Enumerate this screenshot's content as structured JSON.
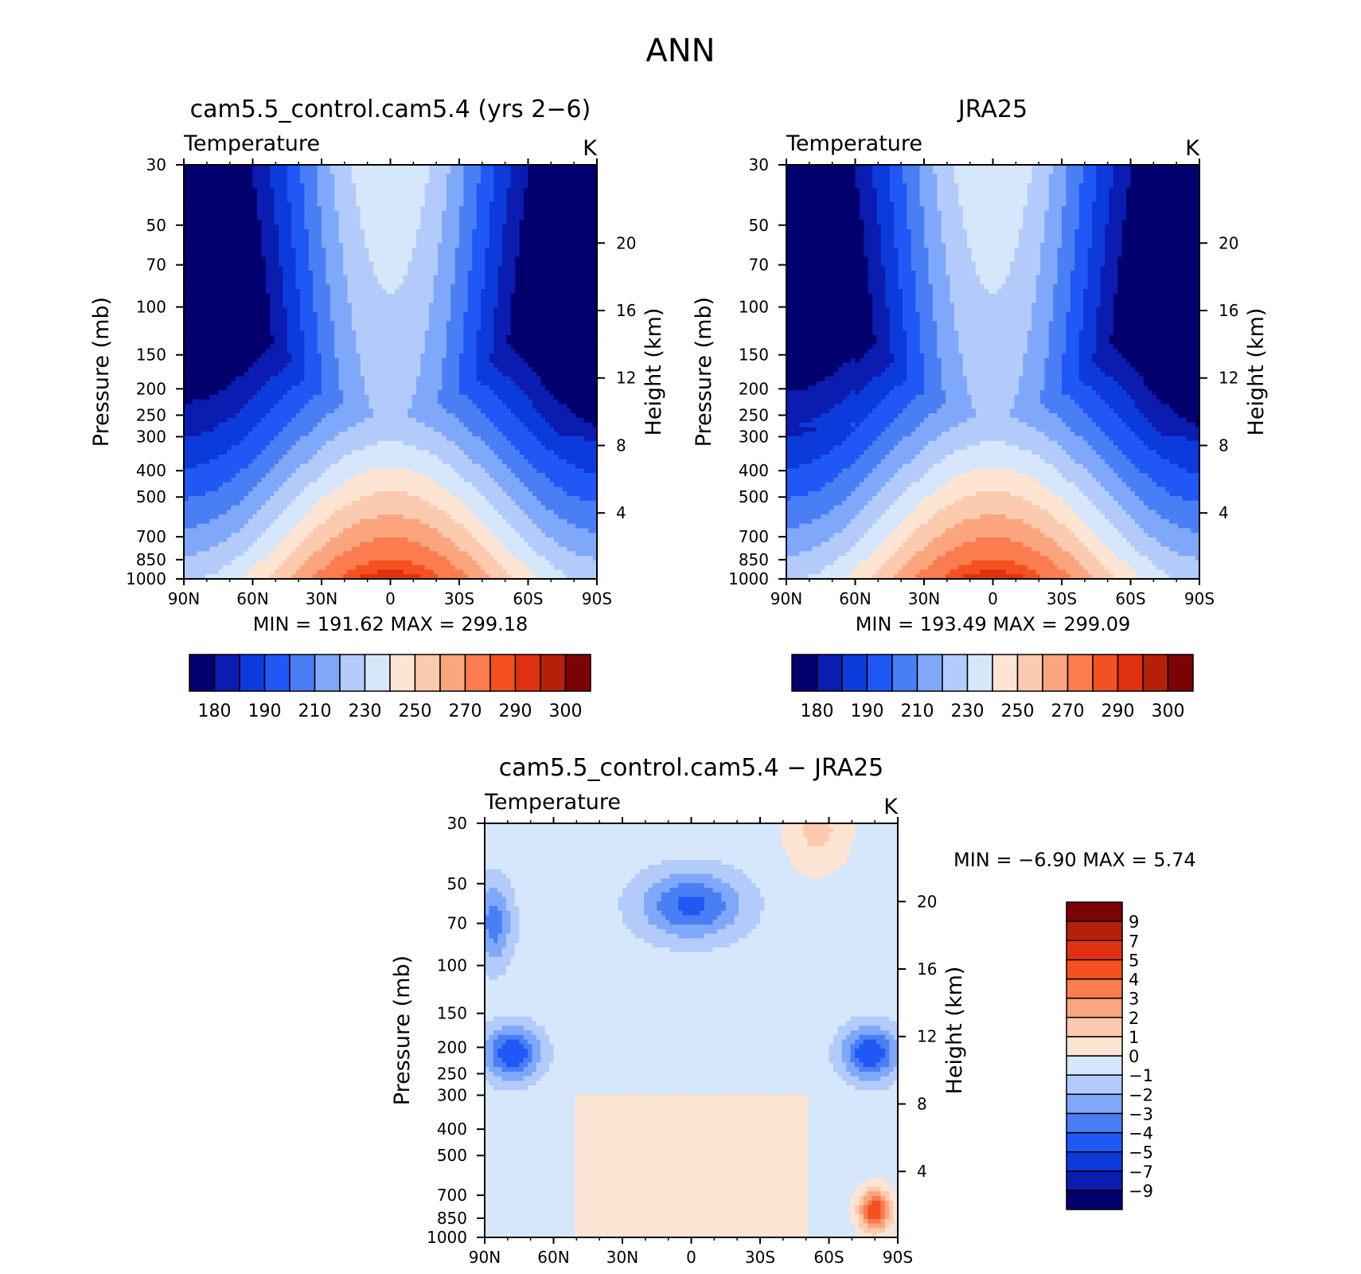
{
  "page": {
    "title": "ANN"
  },
  "chart_data": [
    {
      "type": "heatmap",
      "title": "cam5.5_control.cam5.4 (yrs 2-6)",
      "variable": "Temperature",
      "units": "K",
      "ylabel": "Pressure (mb)",
      "ylabel_right": "Height (km)",
      "x_ticks": [
        "90N",
        "60N",
        "30N",
        "0",
        "30S",
        "60S",
        "90S"
      ],
      "p_ticks": [
        "30",
        "50",
        "70",
        "100",
        "150",
        "200",
        "250",
        "300",
        "400",
        "500",
        "700",
        "850",
        "1000"
      ],
      "p_values": [
        30,
        50,
        70,
        100,
        150,
        200,
        250,
        300,
        400,
        500,
        700,
        850,
        1000
      ],
      "height_ticks": [
        "4",
        "8",
        "12",
        "16",
        "20"
      ],
      "height_values": [
        4,
        8,
        12,
        16,
        20
      ],
      "stats": {
        "min_label": "MIN",
        "min": "191.62",
        "max_label": "MAX",
        "max": "299.18"
      },
      "colorbar": {
        "orientation": "horizontal",
        "colors": [
          "#02006e",
          "#0b1cb0",
          "#0d3bdb",
          "#2058f5",
          "#4a7ef5",
          "#7fa8fa",
          "#b3cbfa",
          "#d6e7fc",
          "#fde4d3",
          "#fccbaf",
          "#fba57f",
          "#fa7c4f",
          "#f5501f",
          "#e03210",
          "#b52108",
          "#7c0305"
        ],
        "labels": [
          "180",
          "190",
          "210",
          "230",
          "250",
          "270",
          "290",
          "300"
        ]
      },
      "field": "model"
    },
    {
      "type": "heatmap",
      "title": "JRA25",
      "variable": "Temperature",
      "units": "K",
      "ylabel": "Pressure (mb)",
      "ylabel_right": "Height (km)",
      "x_ticks": [
        "90N",
        "60N",
        "30N",
        "0",
        "30S",
        "60S",
        "90S"
      ],
      "p_ticks": [
        "30",
        "50",
        "70",
        "100",
        "150",
        "200",
        "250",
        "300",
        "400",
        "500",
        "700",
        "850",
        "1000"
      ],
      "p_values": [
        30,
        50,
        70,
        100,
        150,
        200,
        250,
        300,
        400,
        500,
        700,
        850,
        1000
      ],
      "height_ticks": [
        "4",
        "8",
        "12",
        "16",
        "20"
      ],
      "height_values": [
        4,
        8,
        12,
        16,
        20
      ],
      "stats": {
        "min_label": "MIN",
        "min": "193.49",
        "max_label": "MAX",
        "max": "299.09"
      },
      "colorbar": {
        "orientation": "horizontal",
        "colors": [
          "#02006e",
          "#0b1cb0",
          "#0d3bdb",
          "#2058f5",
          "#4a7ef5",
          "#7fa8fa",
          "#b3cbfa",
          "#d6e7fc",
          "#fde4d3",
          "#fccbaf",
          "#fba57f",
          "#fa7c4f",
          "#f5501f",
          "#e03210",
          "#b52108",
          "#7c0305"
        ],
        "labels": [
          "180",
          "190",
          "210",
          "230",
          "250",
          "270",
          "290",
          "300"
        ]
      },
      "field": "obs"
    },
    {
      "type": "heatmap",
      "title": "cam5.5_control.cam5.4 - JRA25",
      "variable": "Temperature",
      "units": "K",
      "ylabel": "Pressure (mb)",
      "ylabel_right": "Height (km)",
      "x_ticks": [
        "90N",
        "60N",
        "30N",
        "0",
        "30S",
        "60S",
        "90S"
      ],
      "p_ticks": [
        "30",
        "50",
        "70",
        "100",
        "150",
        "200",
        "250",
        "300",
        "400",
        "500",
        "700",
        "850",
        "1000"
      ],
      "p_values": [
        30,
        50,
        70,
        100,
        150,
        200,
        250,
        300,
        400,
        500,
        700,
        850,
        1000
      ],
      "height_ticks": [
        "4",
        "8",
        "12",
        "16",
        "20"
      ],
      "height_values": [
        4,
        8,
        12,
        16,
        20
      ],
      "stats": {
        "min_label": "MIN",
        "min": "-6.90",
        "max_label": "MAX",
        "max": "5.74"
      },
      "colorbar": {
        "orientation": "vertical",
        "colors": [
          "#02006e",
          "#0b1cb0",
          "#0d3bdb",
          "#2058f5",
          "#4a7ef5",
          "#7fa8fa",
          "#b3cbfa",
          "#d6e7fc",
          "#fde4d3",
          "#fccbaf",
          "#fba57f",
          "#fa7c4f",
          "#f5501f",
          "#e03210",
          "#b52108",
          "#7c0305"
        ],
        "labels": [
          "-9",
          "-7",
          "-5",
          "-4",
          "-3",
          "-2",
          "-1",
          "0",
          "1",
          "2",
          "3",
          "4",
          "5",
          "7",
          "9"
        ]
      },
      "field": "diff"
    }
  ]
}
